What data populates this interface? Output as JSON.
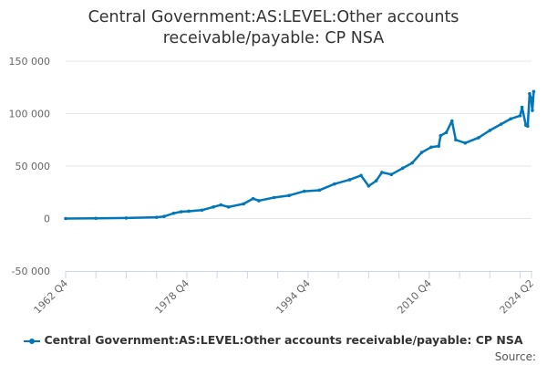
{
  "chart_data": {
    "type": "line",
    "title": "Central Government:AS:LEVEL:Other accounts receivable/payable: CP NSA",
    "xlabel": "",
    "ylabel": "",
    "ylim": [
      -50000,
      150000
    ],
    "yticks": [
      -50000,
      0,
      50000,
      100000,
      150000
    ],
    "ytick_labels": [
      "-50 000",
      "0",
      "50 000",
      "100 000",
      "150 000"
    ],
    "xticks": [
      "1962 Q4",
      "1978 Q4",
      "1994 Q4",
      "2010 Q4",
      "2024 Q2"
    ],
    "grid": true,
    "legend_position": "bottom",
    "color": "#0077bb",
    "series": [
      {
        "name": "Central Government:AS:LEVEL:Other accounts receivable/payable: CP NSA",
        "points": [
          [
            "1962 Q4",
            0
          ],
          [
            "1966 Q4",
            200
          ],
          [
            "1970 Q4",
            500
          ],
          [
            "1974 Q4",
            1200
          ],
          [
            "1975 Q4",
            2000
          ],
          [
            "1977 Q1",
            5000
          ],
          [
            "1978 Q1",
            6500
          ],
          [
            "1979 Q1",
            7000
          ],
          [
            "1980 Q4",
            8000
          ],
          [
            "1982 Q2",
            11000
          ],
          [
            "1983 Q2",
            13000
          ],
          [
            "1984 Q2",
            11000
          ],
          [
            "1986 Q2",
            14000
          ],
          [
            "1987 Q3",
            19000
          ],
          [
            "1988 Q2",
            17000
          ],
          [
            "1990 Q2",
            20000
          ],
          [
            "1992 Q2",
            22000
          ],
          [
            "1994 Q2",
            26000
          ],
          [
            "1996 Q2",
            27000
          ],
          [
            "1998 Q2",
            33000
          ],
          [
            "2000 Q2",
            37000
          ],
          [
            "2001 Q4",
            41000
          ],
          [
            "2002 Q4",
            31000
          ],
          [
            "2003 Q4",
            36000
          ],
          [
            "2004 Q3",
            44000
          ],
          [
            "2005 Q4",
            42000
          ],
          [
            "2007 Q2",
            48000
          ],
          [
            "2008 Q3",
            53000
          ],
          [
            "2009 Q4",
            63000
          ],
          [
            "2011 Q1",
            68000
          ],
          [
            "2012 Q1",
            69000
          ],
          [
            "2012 Q2",
            79000
          ],
          [
            "2013 Q1",
            82000
          ],
          [
            "2013 Q4",
            93000
          ],
          [
            "2014 Q2",
            75000
          ],
          [
            "2015 Q3",
            72000
          ],
          [
            "2017 Q2",
            77000
          ],
          [
            "2018 Q4",
            84000
          ],
          [
            "2020 Q2",
            90000
          ],
          [
            "2021 Q3",
            95000
          ],
          [
            "2022 Q4",
            98000
          ],
          [
            "2023 Q1",
            106000
          ],
          [
            "2023 Q3",
            89000
          ],
          [
            "2023 Q4",
            88000
          ],
          [
            "2024 Q1",
            119000
          ],
          [
            "2024 Q1",
            115000
          ],
          [
            "2024 Q1",
            103000
          ],
          [
            "2024 Q2",
            121000
          ]
        ]
      }
    ],
    "source_label": "Source:"
  }
}
